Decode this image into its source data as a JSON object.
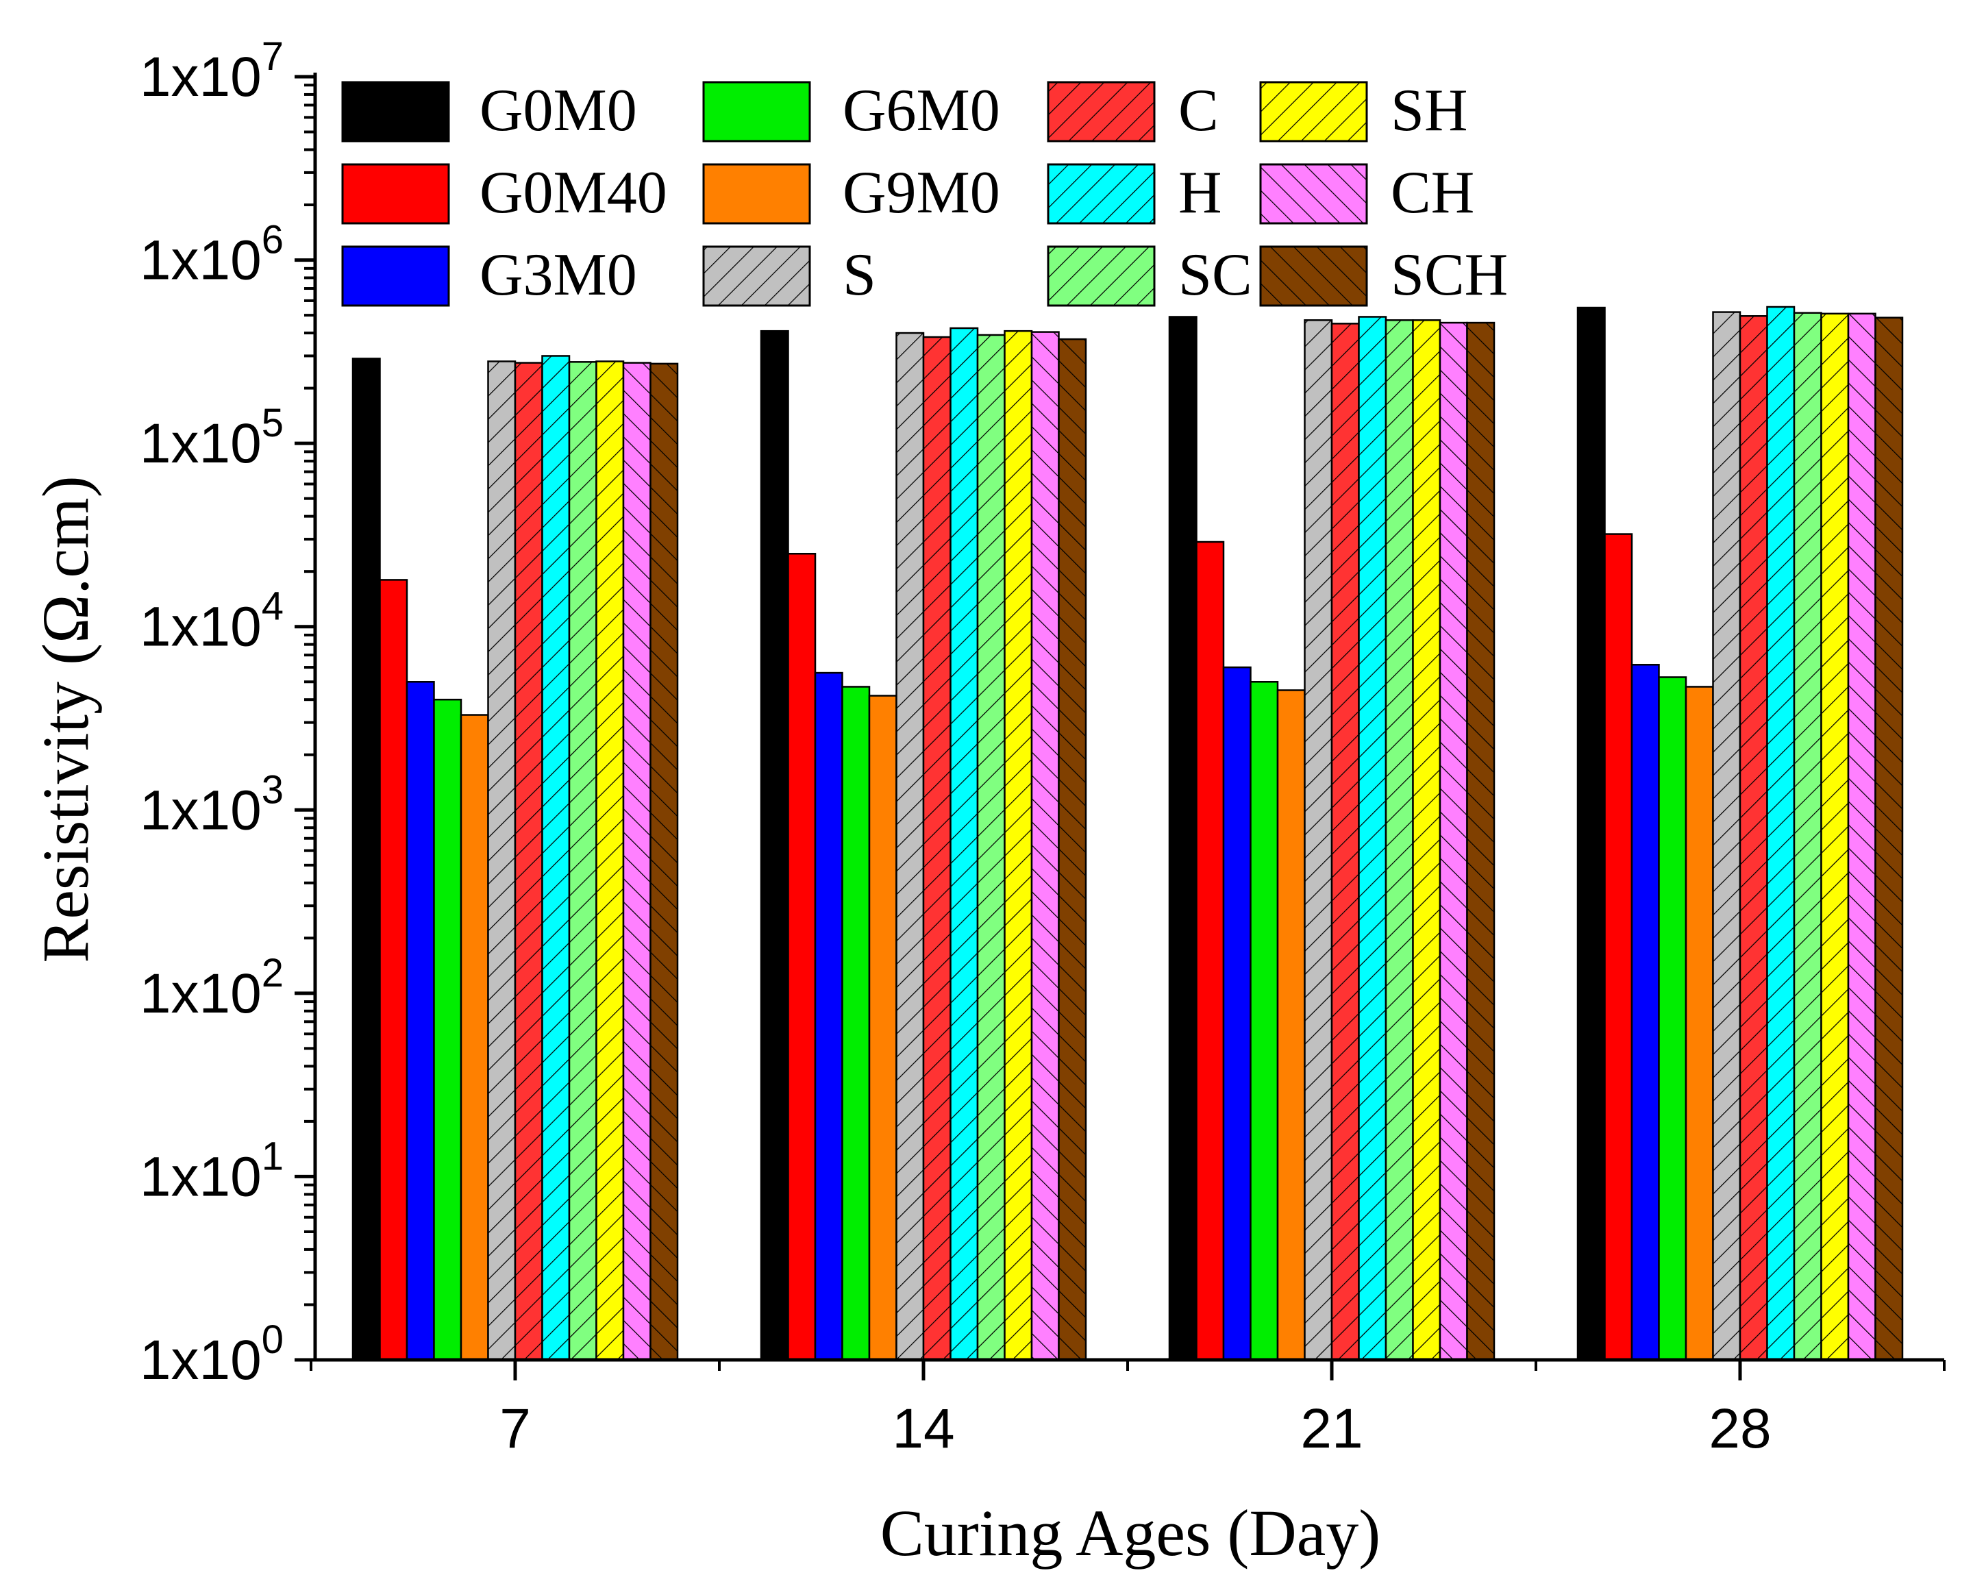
{
  "chart_data": {
    "type": "bar",
    "title": "",
    "xlabel": "Curing Ages (Day)",
    "ylabel": "Resistivity (Ω.cm)",
    "yscale": "log",
    "ylim": [
      1,
      10000000
    ],
    "ytick_labels": [
      {
        "base": "1x10",
        "exp": "0"
      },
      {
        "base": "1x10",
        "exp": "1"
      },
      {
        "base": "1x10",
        "exp": "2"
      },
      {
        "base": "1x10",
        "exp": "3"
      },
      {
        "base": "1x10",
        "exp": "4"
      },
      {
        "base": "1x10",
        "exp": "5"
      },
      {
        "base": "1x10",
        "exp": "6"
      },
      {
        "base": "1x10",
        "exp": "7"
      }
    ],
    "categories": [
      "7",
      "14",
      "21",
      "28"
    ],
    "series": [
      {
        "name": "G0M0",
        "color": "#000000",
        "pattern": "solid",
        "values": [
          290000,
          410000,
          490000,
          550000
        ]
      },
      {
        "name": "G0M40",
        "color": "#ff0000",
        "pattern": "solid",
        "values": [
          18000,
          25000,
          29000,
          32000
        ]
      },
      {
        "name": "G3M0",
        "color": "#0000ff",
        "pattern": "solid",
        "values": [
          5000,
          5600,
          6000,
          6200
        ]
      },
      {
        "name": "G6M0",
        "color": "#00ee00",
        "pattern": "solid",
        "values": [
          4000,
          4700,
          5000,
          5300
        ]
      },
      {
        "name": "G9M0",
        "color": "#ff8000",
        "pattern": "solid",
        "values": [
          3300,
          4200,
          4500,
          4700
        ]
      },
      {
        "name": "S",
        "color": "#c0c0c0",
        "pattern": "hatch",
        "values": [
          280000,
          400000,
          470000,
          520000
        ]
      },
      {
        "name": "C",
        "color": "#ff3333",
        "pattern": "hatch",
        "values": [
          275000,
          380000,
          450000,
          495000
        ]
      },
      {
        "name": "H",
        "color": "#00ffff",
        "pattern": "hatch",
        "values": [
          300000,
          425000,
          490000,
          555000
        ]
      },
      {
        "name": "SC",
        "color": "#80ff80",
        "pattern": "hatch",
        "values": [
          278000,
          390000,
          470000,
          515000
        ]
      },
      {
        "name": "SH",
        "color": "#ffff00",
        "pattern": "hatch",
        "values": [
          280000,
          410000,
          470000,
          510000
        ]
      },
      {
        "name": "CH",
        "color": "#ff80ff",
        "pattern": "backhatch",
        "values": [
          275000,
          405000,
          455000,
          510000
        ]
      },
      {
        "name": "SCH",
        "color": "#804000",
        "pattern": "backhatch",
        "values": [
          272000,
          370000,
          455000,
          485000
        ]
      }
    ],
    "legend": {
      "position": "top-left",
      "columns": [
        [
          "G0M0",
          "G0M40",
          "G3M0"
        ],
        [
          "G6M0",
          "G9M0",
          "S"
        ],
        [
          "C",
          "H",
          "SC"
        ],
        [
          "SH",
          "CH",
          "SCH"
        ]
      ]
    }
  }
}
